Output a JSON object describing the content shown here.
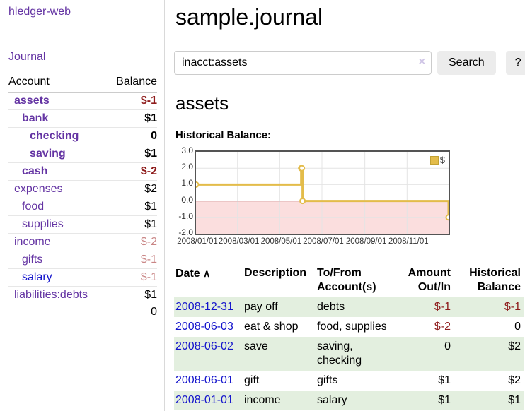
{
  "colors": {
    "link_purple": "#6434a3",
    "link_blue": "#1414cc",
    "negative_strong": "#8e1c1c",
    "negative_faded": "#c98585",
    "row_green": "#e3efdf",
    "button_bg": "#ececec",
    "chart_line": "#e3bc4a",
    "chart_negative_region": "#fbdede",
    "chart_zero_line": "#9b1c1c"
  },
  "sidebar": {
    "app_title": "hledger-web",
    "journal_link": "Journal",
    "accounts": {
      "headers": [
        "Account",
        "Balance"
      ],
      "rows": [
        {
          "account": "assets",
          "balance": "$-1",
          "indent": 0,
          "bold": true,
          "balance_class": "amt-neg"
        },
        {
          "account": "bank",
          "balance": "$1",
          "indent": 1,
          "bold": true,
          "balance_class": "amt-pos"
        },
        {
          "account": "checking",
          "balance": "0",
          "indent": 2,
          "bold": true,
          "balance_class": "amt-pos"
        },
        {
          "account": "saving",
          "balance": "$1",
          "indent": 2,
          "bold": true,
          "balance_class": "amt-pos"
        },
        {
          "account": "cash",
          "balance": "$-2",
          "indent": 1,
          "bold": true,
          "balance_class": "amt-neg"
        },
        {
          "account": "expenses",
          "balance": "$2",
          "indent": 0,
          "bold": false,
          "balance_class": "amt-pos"
        },
        {
          "account": "food",
          "balance": "$1",
          "indent": 1,
          "bold": false,
          "balance_class": "amt-pos"
        },
        {
          "account": "supplies",
          "balance": "$1",
          "indent": 1,
          "bold": false,
          "balance_class": "amt-pos"
        },
        {
          "account": "income",
          "balance": "$-2",
          "indent": 0,
          "bold": false,
          "balance_class": "amt-neg-faded"
        },
        {
          "account": "gifts",
          "balance": "$-1",
          "indent": 1,
          "bold": false,
          "balance_class": "amt-neg-faded"
        },
        {
          "account": "salary",
          "balance": "$-1",
          "indent": 1,
          "bold": false,
          "balance_class": "amt-neg-faded",
          "link": "blue"
        },
        {
          "account": "liabilities:debts",
          "balance": "$1",
          "indent": 0,
          "bold": false,
          "balance_class": "amt-pos"
        }
      ],
      "total": "0"
    }
  },
  "main": {
    "title": "sample.journal",
    "search": {
      "value": "inacct:assets",
      "clear_icon": "×",
      "button_label": "Search",
      "help_label": "?"
    },
    "account_heading": "assets",
    "chart_caption": "Historical Balance:"
  },
  "chart_data": {
    "type": "line",
    "step": true,
    "title": "Historical Balance",
    "x_range": [
      "2008-01-01",
      "2008-12-31"
    ],
    "ylim": [
      -2,
      3
    ],
    "yticks": [
      {
        "label": "3.0",
        "value": 3
      },
      {
        "label": "2.0",
        "value": 2
      },
      {
        "label": "1.0",
        "value": 1
      },
      {
        "label": "0.0",
        "value": 0
      },
      {
        "label": "-1.0",
        "value": -1
      },
      {
        "label": "-2.0",
        "value": -2
      }
    ],
    "xticks": [
      {
        "label": "2008/01/01",
        "date": "2008-01-01"
      },
      {
        "label": "2008/03/01",
        "date": "2008-03-01"
      },
      {
        "label": "2008/05/01",
        "date": "2008-05-01"
      },
      {
        "label": "2008/07/01",
        "date": "2008-07-01"
      },
      {
        "label": "2008/09/01",
        "date": "2008-09-01"
      },
      {
        "label": "2008/11/01",
        "date": "2008-11-01"
      }
    ],
    "series": [
      {
        "name": "$",
        "points": [
          {
            "date": "2008-01-01",
            "value": 1
          },
          {
            "date": "2008-06-01",
            "value": 2
          },
          {
            "date": "2008-06-02",
            "value": 2
          },
          {
            "date": "2008-06-03",
            "value": 0
          },
          {
            "date": "2008-12-31",
            "value": -1
          }
        ]
      }
    ],
    "legend": {
      "label": "$",
      "position": "top-right"
    },
    "negative_region": true,
    "grid": true
  },
  "register": {
    "headers": [
      "Date",
      "Description",
      "To/From Account(s)",
      "Amount Out/In",
      "Historical Balance"
    ],
    "sort_icon": "∧",
    "rows": [
      {
        "date": "2008-12-31",
        "description": "pay off",
        "accounts": "debts",
        "amount": "$-1",
        "amount_class": "amt-neg",
        "balance": "$-1",
        "balance_class": "amt-neg"
      },
      {
        "date": "2008-06-03",
        "description": "eat & shop",
        "accounts": "food, supplies",
        "amount": "$-2",
        "amount_class": "amt-neg",
        "balance": "0",
        "balance_class": "amt-pos"
      },
      {
        "date": "2008-06-02",
        "description": "save",
        "accounts": "saving, checking",
        "amount": "0",
        "amount_class": "amt-pos",
        "balance": "$2",
        "balance_class": "amt-pos"
      },
      {
        "date": "2008-06-01",
        "description": "gift",
        "accounts": "gifts",
        "amount": "$1",
        "amount_class": "amt-pos",
        "balance": "$2",
        "balance_class": "amt-pos"
      },
      {
        "date": "2008-01-01",
        "description": "income",
        "accounts": "salary",
        "amount": "$1",
        "amount_class": "amt-pos",
        "balance": "$1",
        "balance_class": "amt-pos"
      }
    ]
  }
}
